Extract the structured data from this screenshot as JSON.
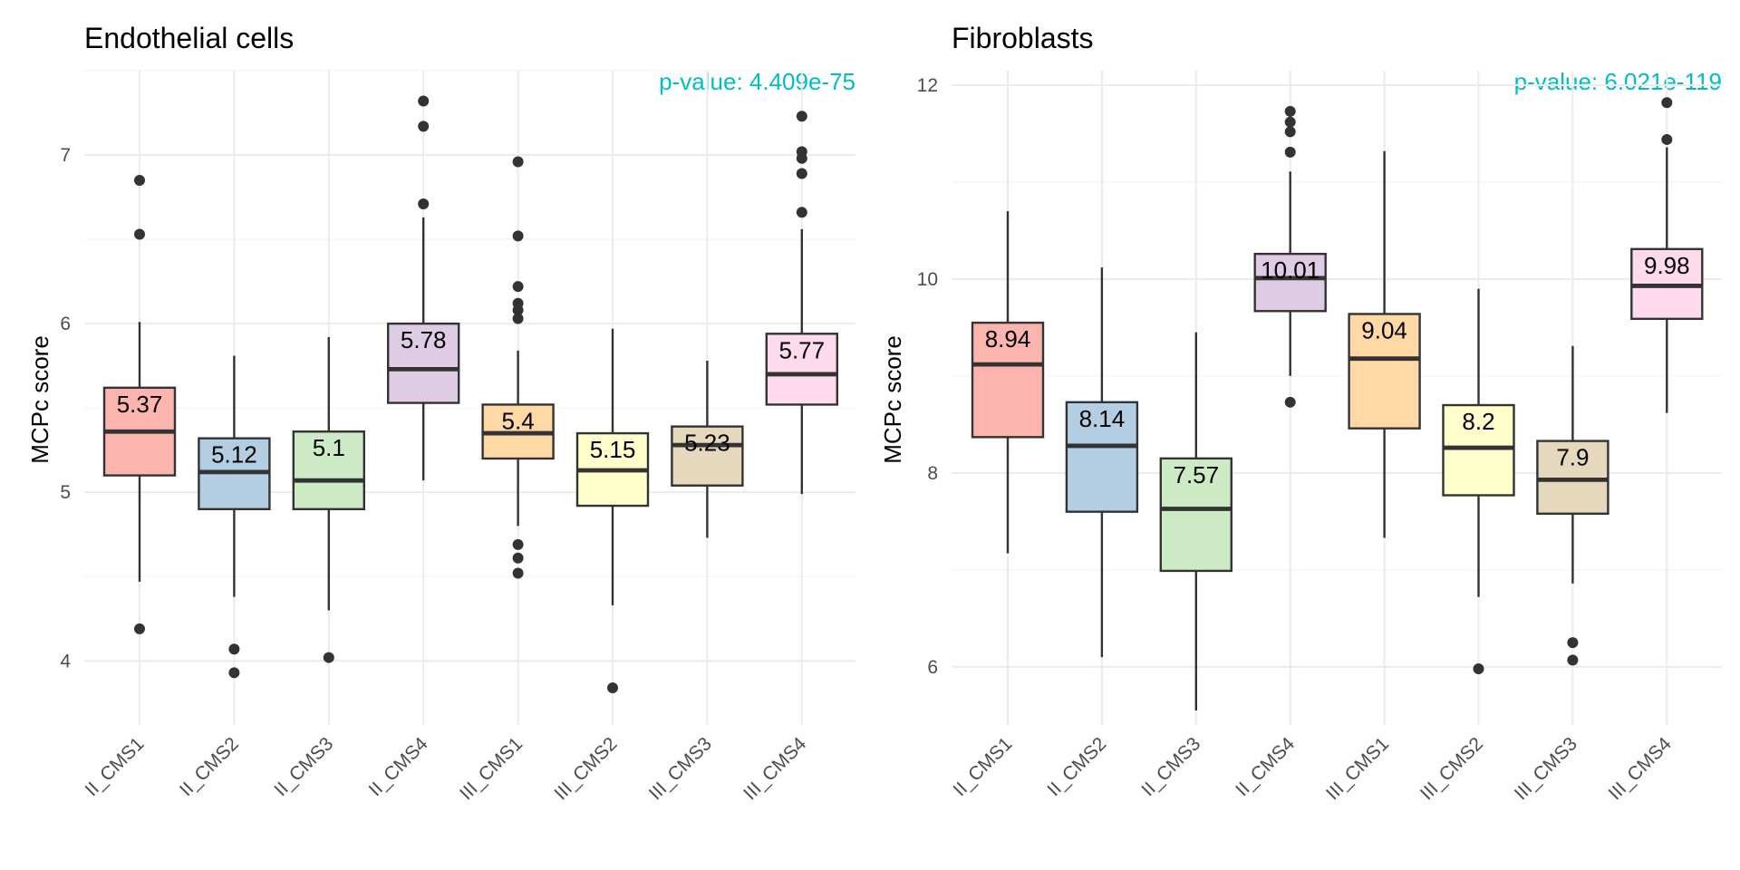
{
  "chart_data": [
    {
      "type": "box",
      "title": "Endothelial cells",
      "ylabel": "MCPc score",
      "xlabel": "",
      "annotation": "p-value: 4.409e-75",
      "ylim": [
        3.62,
        7.5
      ],
      "yticks": [
        4,
        5,
        6,
        7
      ],
      "grid": true,
      "legend": "none",
      "categories": [
        "II_CMS1",
        "II_CMS2",
        "II_CMS3",
        "II_CMS4",
        "III_CMS1",
        "III_CMS2",
        "III_CMS3",
        "III_CMS4"
      ],
      "colors": [
        "#fbb4ae",
        "#b3cde3",
        "#ccebc5",
        "#decbe4",
        "#fed9a6",
        "#ffffcc",
        "#e5d8bd",
        "#fddaec"
      ],
      "boxes": [
        {
          "q1": 5.1,
          "median": 5.36,
          "q3": 5.62,
          "lower": 4.47,
          "upper": 6.01,
          "label": "5.37",
          "outliers": [
            6.85,
            6.53,
            4.19
          ]
        },
        {
          "q1": 4.9,
          "median": 5.12,
          "q3": 5.32,
          "lower": 4.38,
          "upper": 5.81,
          "label": "5.12",
          "outliers": [
            4.07,
            3.93
          ]
        },
        {
          "q1": 4.9,
          "median": 5.07,
          "q3": 5.36,
          "lower": 4.3,
          "upper": 5.92,
          "label": "5.1",
          "outliers": [
            4.02
          ]
        },
        {
          "q1": 5.53,
          "median": 5.73,
          "q3": 6.0,
          "lower": 5.07,
          "upper": 6.63,
          "label": "5.78",
          "outliers": [
            7.32,
            7.17,
            6.71
          ]
        },
        {
          "q1": 5.2,
          "median": 5.35,
          "q3": 5.52,
          "lower": 4.8,
          "upper": 5.84,
          "label": "5.4",
          "outliers": [
            6.96,
            6.52,
            6.22,
            6.12,
            6.08,
            6.03,
            4.69,
            4.61,
            4.52
          ]
        },
        {
          "q1": 4.92,
          "median": 5.13,
          "q3": 5.35,
          "lower": 4.33,
          "upper": 5.97,
          "label": "5.15",
          "outliers": [
            3.84
          ]
        },
        {
          "q1": 5.04,
          "median": 5.28,
          "q3": 5.39,
          "lower": 4.73,
          "upper": 5.78,
          "label": "5.23",
          "outliers": []
        },
        {
          "q1": 5.52,
          "median": 5.7,
          "q3": 5.94,
          "lower": 4.99,
          "upper": 6.56,
          "label": "5.77",
          "outliers": [
            7.23,
            7.02,
            6.98,
            6.89,
            6.66
          ]
        }
      ]
    },
    {
      "type": "box",
      "title": "Fibroblasts",
      "ylabel": "MCPc score",
      "xlabel": "",
      "annotation": "p-value: 6.021e-119",
      "ylim": [
        5.4,
        12.15
      ],
      "yticks": [
        6,
        8,
        10,
        12
      ],
      "grid": true,
      "legend": "none",
      "categories": [
        "II_CMS1",
        "II_CMS2",
        "II_CMS3",
        "II_CMS4",
        "III_CMS1",
        "III_CMS2",
        "III_CMS3",
        "III_CMS4"
      ],
      "colors": [
        "#fbb4ae",
        "#b3cde3",
        "#ccebc5",
        "#decbe4",
        "#fed9a6",
        "#ffffcc",
        "#e5d8bd",
        "#fddaec"
      ],
      "boxes": [
        {
          "q1": 8.37,
          "median": 9.12,
          "q3": 9.55,
          "lower": 7.17,
          "upper": 10.7,
          "label": "8.94",
          "outliers": []
        },
        {
          "q1": 7.6,
          "median": 8.28,
          "q3": 8.73,
          "lower": 6.1,
          "upper": 10.12,
          "label": "8.14",
          "outliers": []
        },
        {
          "q1": 6.99,
          "median": 7.63,
          "q3": 8.15,
          "lower": 5.55,
          "upper": 9.45,
          "label": "7.57",
          "outliers": []
        },
        {
          "q1": 9.67,
          "median": 10.01,
          "q3": 10.26,
          "lower": 9.0,
          "upper": 11.11,
          "label": "10.01",
          "outliers": [
            11.73,
            11.62,
            11.52,
            11.31,
            8.73
          ]
        },
        {
          "q1": 8.46,
          "median": 9.18,
          "q3": 9.64,
          "lower": 7.33,
          "upper": 11.32,
          "label": "9.04",
          "outliers": []
        },
        {
          "q1": 7.77,
          "median": 8.26,
          "q3": 8.7,
          "lower": 6.72,
          "upper": 9.9,
          "label": "8.2",
          "outliers": [
            5.98
          ]
        },
        {
          "q1": 7.58,
          "median": 7.93,
          "q3": 8.33,
          "lower": 6.86,
          "upper": 9.31,
          "label": "7.9",
          "outliers": [
            6.25,
            6.07
          ]
        },
        {
          "q1": 9.59,
          "median": 9.93,
          "q3": 10.31,
          "lower": 8.62,
          "upper": 11.36,
          "label": "9.98",
          "outliers": [
            11.82,
            11.44
          ]
        }
      ]
    }
  ]
}
